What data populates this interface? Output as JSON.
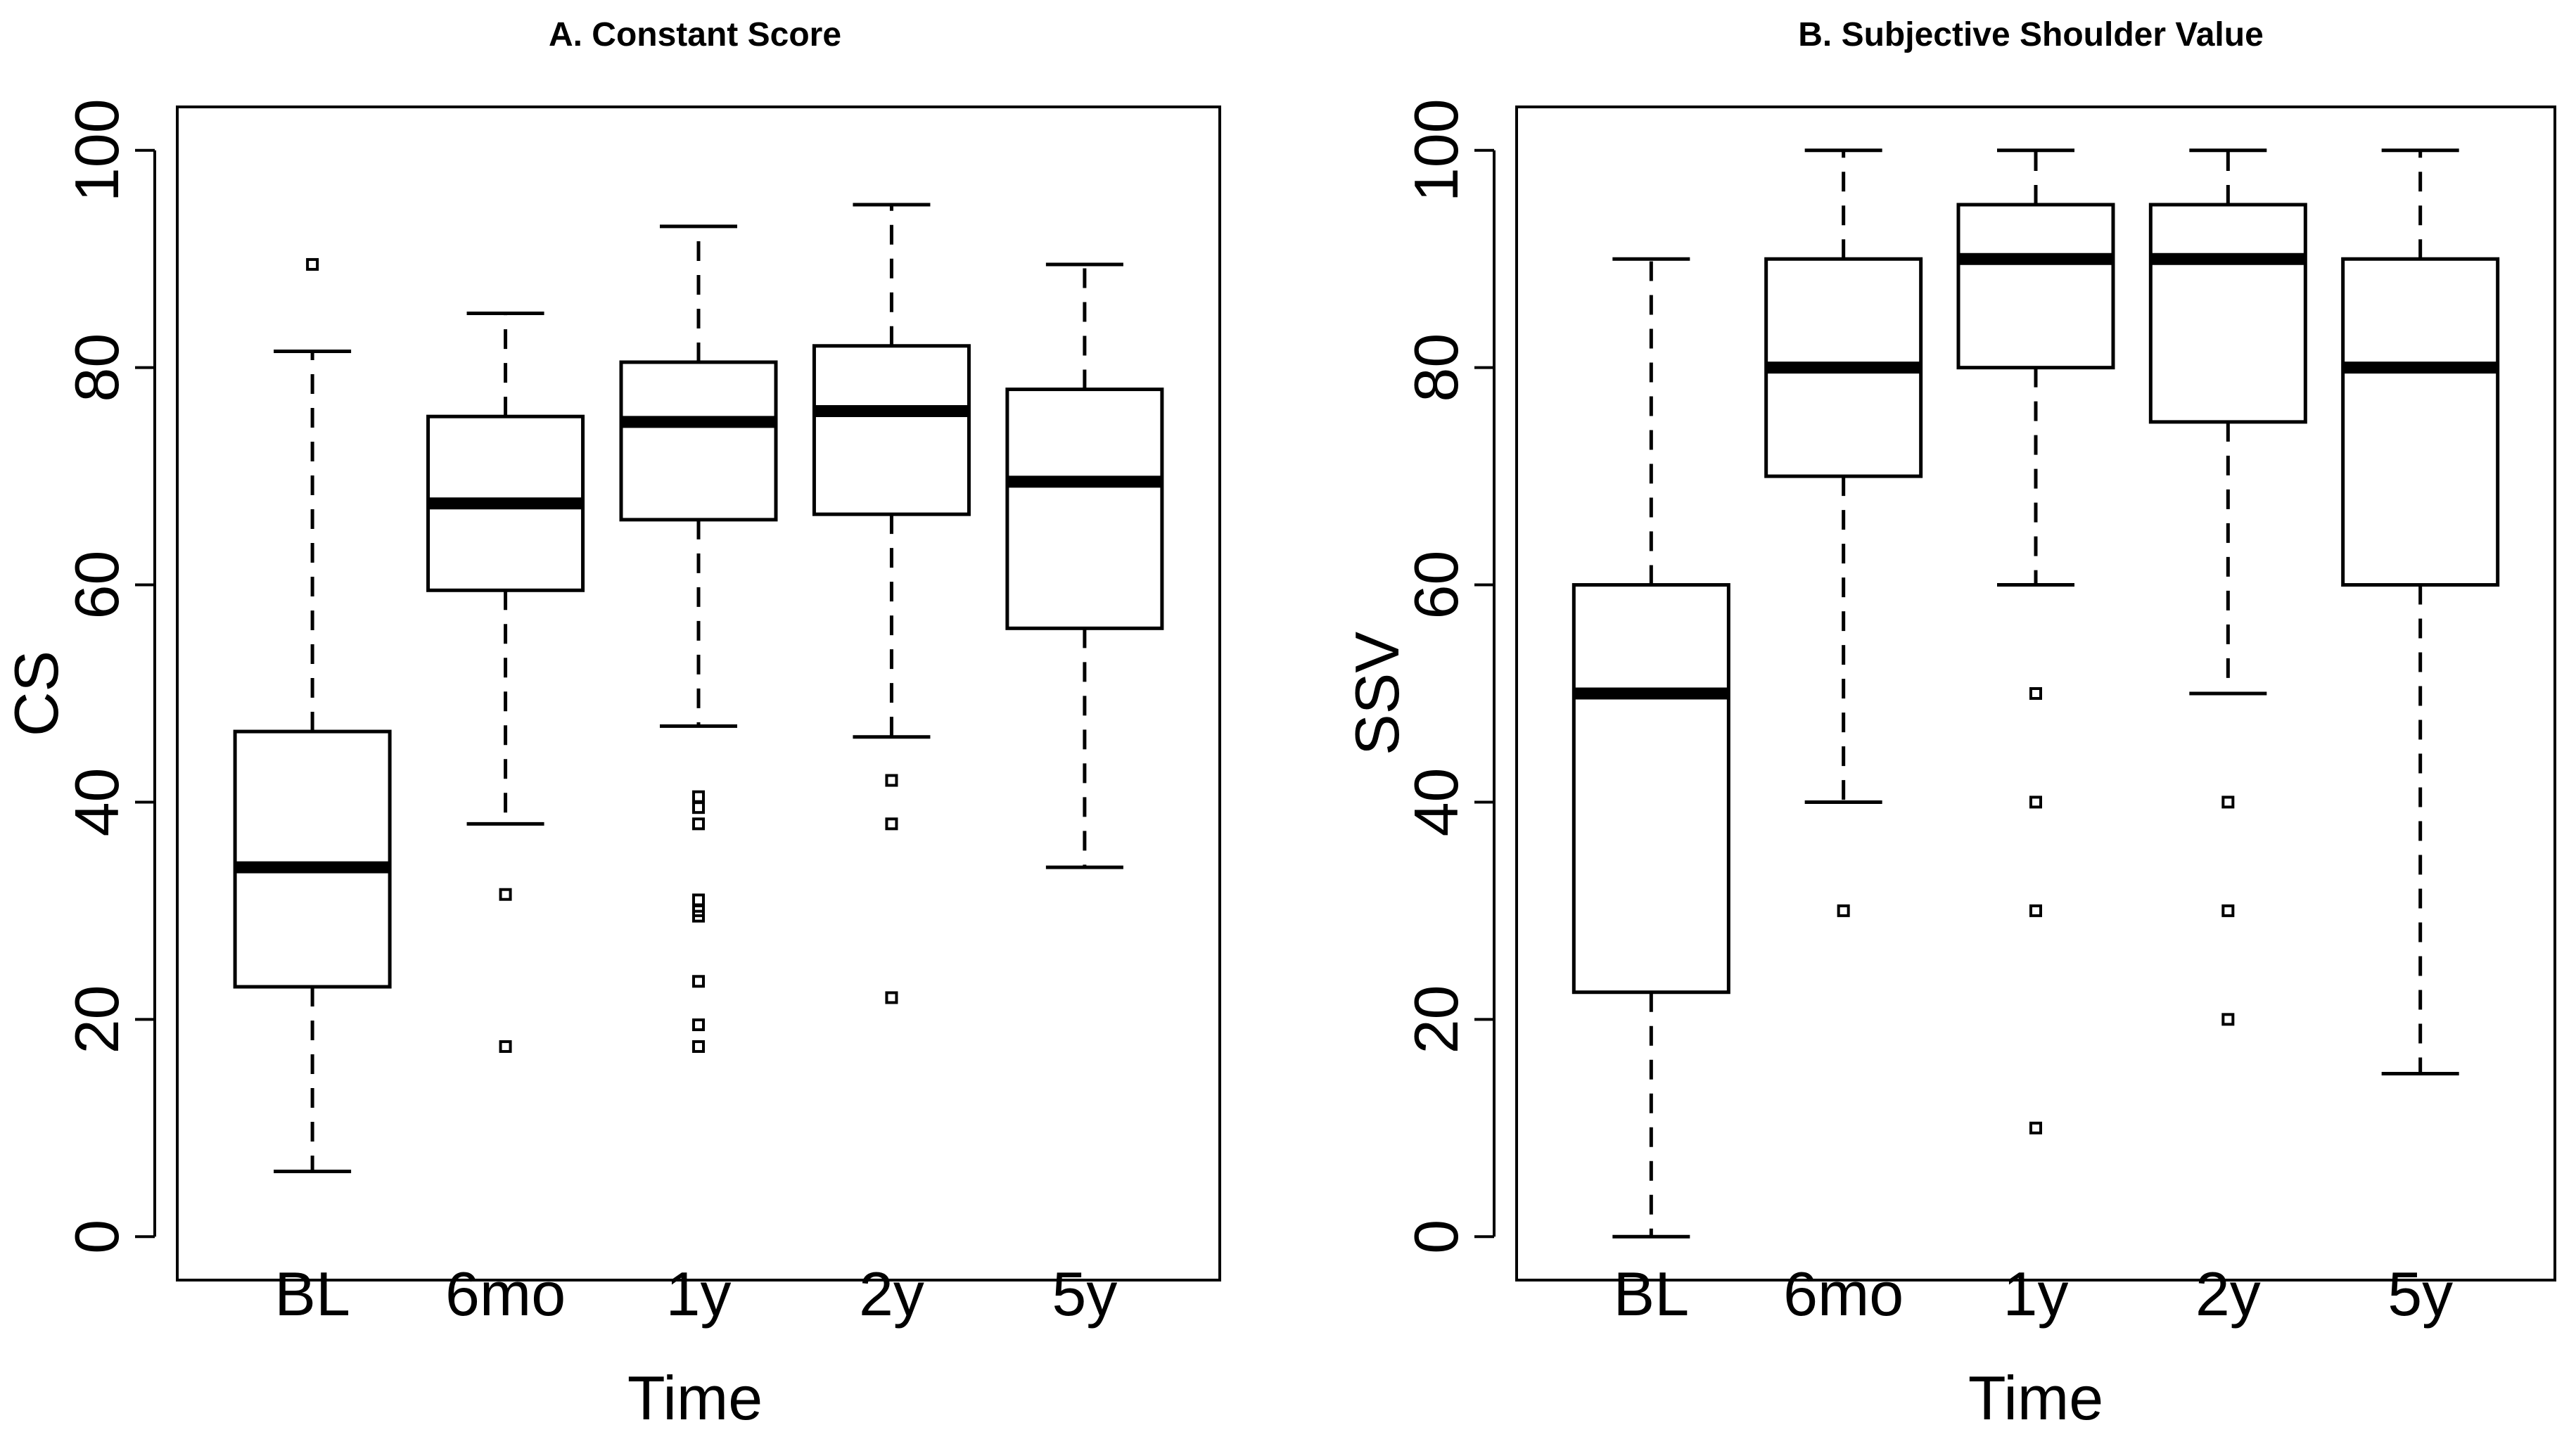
{
  "chart_data": [
    {
      "type": "boxplot",
      "title": "A. Constant Score",
      "xlabel": "Time",
      "ylabel": "CS",
      "categories": [
        "BL",
        "6mo",
        "1y",
        "2y",
        "5y"
      ],
      "ylim": [
        -4,
        104
      ],
      "yticks": [
        0,
        20,
        40,
        60,
        80,
        100
      ],
      "boxes": [
        {
          "label": "BL",
          "whisker_low": 6,
          "q1": 23,
          "median": 34,
          "q3": 46.5,
          "whisker_high": 81.5,
          "outliers": [
            89.5
          ]
        },
        {
          "label": "6mo",
          "whisker_low": 38,
          "q1": 59.5,
          "median": 67.5,
          "q3": 75.5,
          "whisker_high": 85,
          "outliers": [
            31.5,
            17.5
          ]
        },
        {
          "label": "1y",
          "whisker_low": 47,
          "q1": 66,
          "median": 75,
          "q3": 80.5,
          "whisker_high": 93,
          "outliers": [
            40.5,
            39.5,
            38,
            31,
            30,
            29.5,
            23.5,
            19.5,
            17.5
          ]
        },
        {
          "label": "2y",
          "whisker_low": 46,
          "q1": 66.5,
          "median": 76,
          "q3": 82,
          "whisker_high": 95,
          "outliers": [
            42,
            38,
            22
          ]
        },
        {
          "label": "5y",
          "whisker_low": 34,
          "q1": 56,
          "median": 69.5,
          "q3": 78,
          "whisker_high": 89.5,
          "outliers": []
        }
      ]
    },
    {
      "type": "boxplot",
      "title": "B. Subjective Shoulder Value",
      "xlabel": "Time",
      "ylabel": "SSV",
      "categories": [
        "BL",
        "6mo",
        "1y",
        "2y",
        "5y"
      ],
      "ylim": [
        -4,
        104
      ],
      "yticks": [
        0,
        20,
        40,
        60,
        80,
        100
      ],
      "boxes": [
        {
          "label": "BL",
          "whisker_low": 0,
          "q1": 22.5,
          "median": 50,
          "q3": 60,
          "whisker_high": 90,
          "outliers": []
        },
        {
          "label": "6mo",
          "whisker_low": 40,
          "q1": 70,
          "median": 80,
          "q3": 90,
          "whisker_high": 100,
          "outliers": [
            30
          ]
        },
        {
          "label": "1y",
          "whisker_low": 60,
          "q1": 80,
          "median": 90,
          "q3": 95,
          "whisker_high": 100,
          "outliers": [
            50,
            40,
            30,
            10
          ]
        },
        {
          "label": "2y",
          "whisker_low": 50,
          "q1": 75,
          "median": 90,
          "q3": 95,
          "whisker_high": 100,
          "outliers": [
            40,
            30,
            20
          ]
        },
        {
          "label": "5y",
          "whisker_low": 15,
          "q1": 60,
          "median": 80,
          "q3": 90,
          "whisker_high": 100,
          "outliers": []
        }
      ]
    }
  ]
}
